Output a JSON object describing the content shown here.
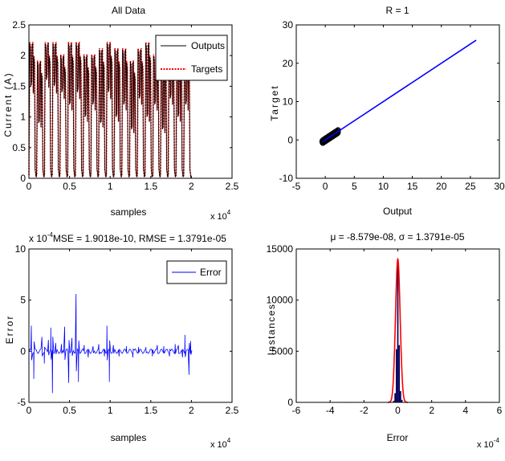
{
  "chart_data": [
    {
      "type": "line",
      "title": "All Data",
      "xlabel": "samples",
      "ylabel": "Current (A)",
      "x_exponent_label": "x 10",
      "x_exponent": "4",
      "xlim": [
        0,
        2.5
      ],
      "ylim": [
        0,
        2.5
      ],
      "xticks": [
        "0",
        "0.5",
        "1",
        "1.5",
        "2",
        "2.5"
      ],
      "yticks": [
        "0",
        "0.5",
        "1",
        "1.5",
        "2",
        "2.5"
      ],
      "legend_position": "top-right",
      "signal": {
        "x_end": 2.0,
        "num_cycles": 21,
        "pattern": "square-like oscillation between ~0 and ~2.2 with notched plateaus",
        "peaks": [
          2.2,
          1.9,
          2.2,
          2.2,
          2.0,
          2.2,
          2.2,
          2.0,
          2.0,
          2.1,
          2.2,
          2.1,
          2.1,
          1.9,
          2.1,
          2.2,
          2.0,
          2.1,
          2.2,
          2.1,
          2.2
        ],
        "mid_levels": [
          1.5,
          0.9,
          1.6,
          1.5,
          1.4,
          1.2,
          1.4,
          1.0,
          1.2,
          0.9,
          1.4,
          1.0,
          1.2,
          0.8,
          1.3,
          1.0,
          1.2,
          0.8,
          1.3,
          1.0,
          1.2
        ]
      },
      "series": [
        {
          "name": "Outputs",
          "color": "#000000",
          "style": "solid"
        },
        {
          "name": "Targets",
          "color": "#ff0000",
          "style": "dotted"
        }
      ]
    },
    {
      "type": "scatter",
      "title": "R = 1",
      "xlabel": "Output",
      "ylabel": "Target",
      "xlim": [
        -5,
        30
      ],
      "ylim": [
        -10,
        30
      ],
      "xticks": [
        "-5",
        "0",
        "5",
        "10",
        "15",
        "20",
        "25",
        "30"
      ],
      "yticks": [
        "-10",
        "0",
        "10",
        "20",
        "30"
      ],
      "fit_line": {
        "x": [
          -0.5,
          26
        ],
        "y": [
          -0.5,
          26
        ],
        "color": "#0000ff"
      },
      "points_cluster": {
        "x_range": [
          -0.5,
          2.2
        ],
        "y_range": [
          -0.5,
          2.2
        ],
        "color": "#000000"
      }
    },
    {
      "type": "line",
      "title": "MSE = 1.9018e-10, RMSE = 1.3791e-05",
      "y_exponent_label": "x 10",
      "y_exponent": "-4",
      "x_exponent_label": "x 10",
      "x_exponent": "4",
      "xlabel": "samples",
      "ylabel": "Error",
      "xlim": [
        0,
        2.5
      ],
      "ylim": [
        -5,
        10
      ],
      "xticks": [
        "0",
        "0.5",
        "1",
        "1.5",
        "2",
        "2.5"
      ],
      "yticks": [
        "-5",
        "0",
        "5",
        "10"
      ],
      "legend_position": "top-right",
      "series": [
        {
          "name": "Error",
          "color": "#0000ff"
        }
      ],
      "spikes": [
        {
          "x": 0.03,
          "y": 2.5
        },
        {
          "x": 0.06,
          "y": -2.7
        },
        {
          "x": 0.16,
          "y": 1.4
        },
        {
          "x": 0.19,
          "y": -1.2
        },
        {
          "x": 0.24,
          "y": 1.1
        },
        {
          "x": 0.27,
          "y": 2.3
        },
        {
          "x": 0.29,
          "y": -4.1
        },
        {
          "x": 0.33,
          "y": 0.8
        },
        {
          "x": 0.4,
          "y": 0.7
        },
        {
          "x": 0.44,
          "y": 2.4
        },
        {
          "x": 0.49,
          "y": -3.1
        },
        {
          "x": 0.53,
          "y": 1.3
        },
        {
          "x": 0.58,
          "y": 5.6
        },
        {
          "x": 0.61,
          "y": -3.0
        },
        {
          "x": 0.68,
          "y": 0.6
        },
        {
          "x": 0.73,
          "y": -0.6
        },
        {
          "x": 0.79,
          "y": 0.5
        },
        {
          "x": 0.86,
          "y": 0.7
        },
        {
          "x": 0.93,
          "y": -0.5
        },
        {
          "x": 0.96,
          "y": 2.5
        },
        {
          "x": 0.99,
          "y": -3.0
        },
        {
          "x": 1.04,
          "y": 0.6
        },
        {
          "x": 1.11,
          "y": -0.5
        },
        {
          "x": 1.2,
          "y": 0.5
        },
        {
          "x": 1.28,
          "y": -0.6
        },
        {
          "x": 1.35,
          "y": 0.4
        },
        {
          "x": 1.44,
          "y": 0.4
        },
        {
          "x": 1.52,
          "y": -0.5
        },
        {
          "x": 1.58,
          "y": 0.6
        },
        {
          "x": 1.66,
          "y": 0.5
        },
        {
          "x": 1.73,
          "y": -0.5
        },
        {
          "x": 1.8,
          "y": 0.7
        },
        {
          "x": 1.84,
          "y": 0.6
        },
        {
          "x": 1.89,
          "y": -0.6
        },
        {
          "x": 1.92,
          "y": 1.6
        },
        {
          "x": 1.97,
          "y": -2.3
        },
        {
          "x": 1.99,
          "y": 1.0
        }
      ]
    },
    {
      "type": "bar",
      "title": "μ = -8.579e-08, σ = 1.3791e-05",
      "xlabel": "Error",
      "ylabel": "Instances",
      "x_exponent_label": "x 10",
      "x_exponent": "-4",
      "xlim": [
        -6,
        6
      ],
      "ylim": [
        0,
        15000
      ],
      "xticks": [
        "-6",
        "-4",
        "-2",
        "0",
        "2",
        "4",
        "6"
      ],
      "yticks": [
        "0",
        "5000",
        "10000",
        "15000"
      ],
      "bar_color": "#00005a",
      "fit_color": "#ff0000",
      "sigma": 0.13791,
      "bins": [
        {
          "x": -0.32,
          "v": 30
        },
        {
          "x": -0.24,
          "v": 150
        },
        {
          "x": -0.16,
          "v": 900
        },
        {
          "x": -0.08,
          "v": 5200
        },
        {
          "x": 0.0,
          "v": 14000
        },
        {
          "x": 0.08,
          "v": 5600
        },
        {
          "x": 0.16,
          "v": 1100
        },
        {
          "x": 0.24,
          "v": 250
        },
        {
          "x": 0.32,
          "v": 40
        },
        {
          "x": -4.1,
          "v": 25
        },
        {
          "x": -3.0,
          "v": 20
        },
        {
          "x": -2.7,
          "v": 20
        },
        {
          "x": -1.2,
          "v": 25
        },
        {
          "x": 1.4,
          "v": 20
        },
        {
          "x": 2.4,
          "v": 25
        },
        {
          "x": 5.6,
          "v": 20
        }
      ]
    }
  ]
}
